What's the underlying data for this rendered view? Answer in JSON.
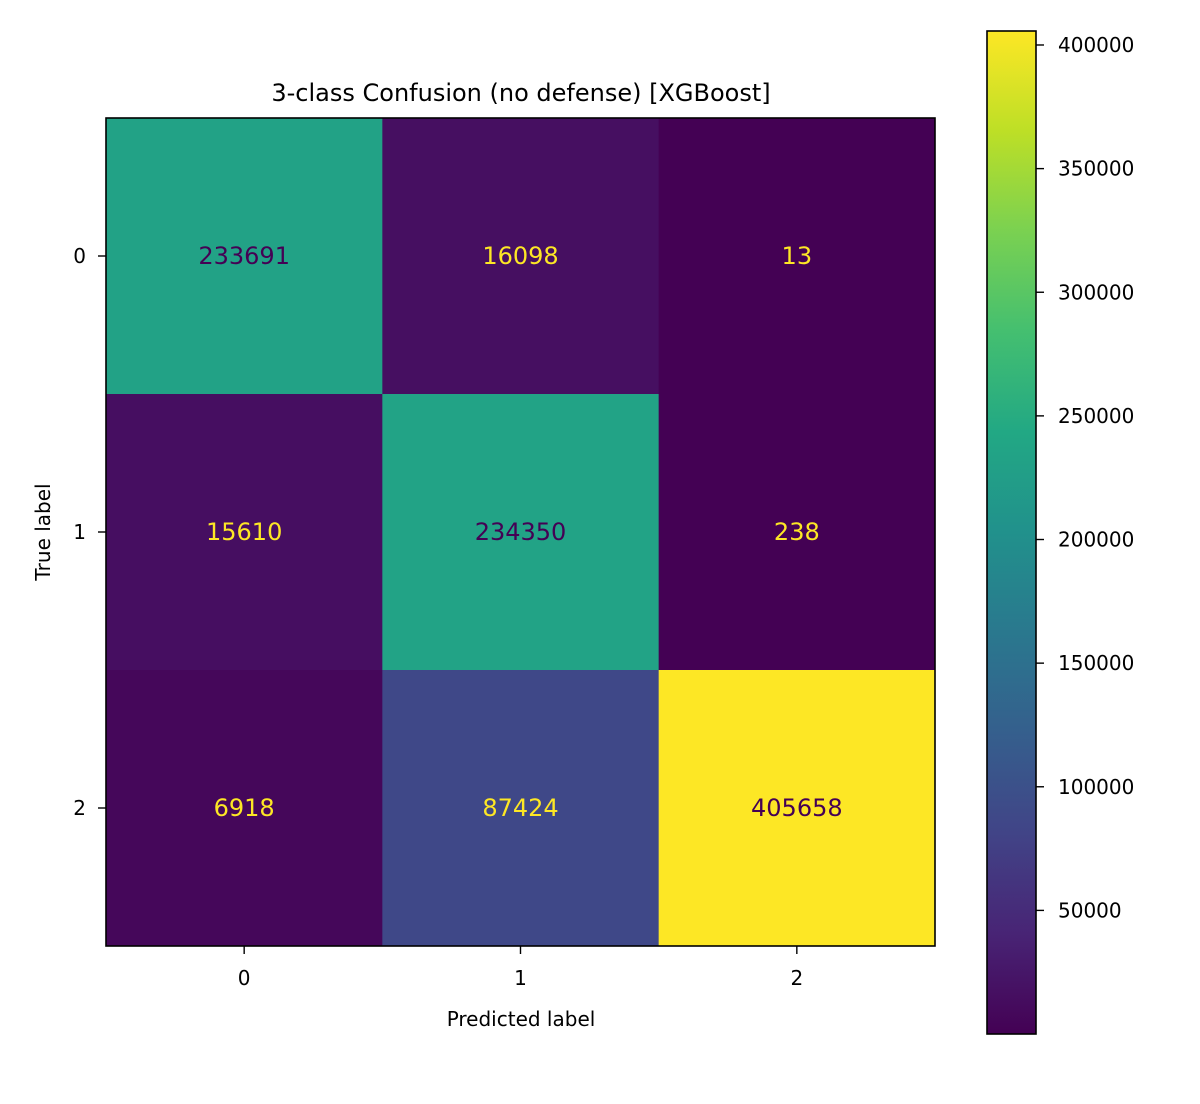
{
  "chart_data": {
    "type": "heatmap",
    "title": "3-class Confusion (no defense) [XGBoost]",
    "xlabel": "Predicted label",
    "ylabel": "True label",
    "x_categories": [
      "0",
      "1",
      "2"
    ],
    "y_categories": [
      "0",
      "1",
      "2"
    ],
    "values": [
      [
        233691,
        16098,
        13
      ],
      [
        15610,
        234350,
        238
      ],
      [
        6918,
        87424,
        405658
      ]
    ],
    "colormap": "viridis",
    "color_range": [
      13,
      405658
    ],
    "colorbar_ticks": [
      50000,
      100000,
      150000,
      200000,
      250000,
      300000,
      350000,
      400000
    ],
    "light_text_color": "#fde725",
    "dark_text_color": "#440154"
  }
}
